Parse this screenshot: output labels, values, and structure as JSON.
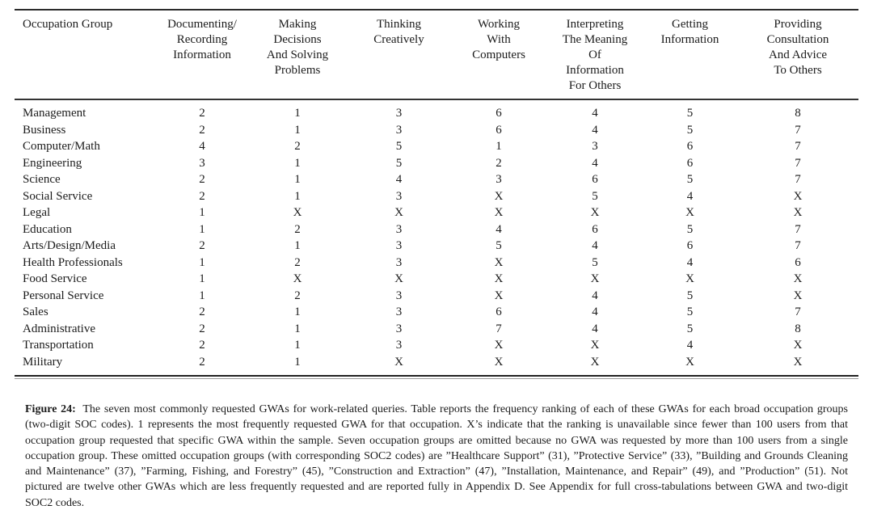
{
  "page": {
    "background": "#ffffff",
    "text_color": "#1b1b1b",
    "rule_color": "#2b2b2b"
  },
  "table": {
    "columns": [
      {
        "label": "Occupation Group",
        "align": "left"
      },
      {
        "label": "Documenting/\nRecording\nInformation"
      },
      {
        "label": "Making\nDecisions\nAnd Solving\nProblems"
      },
      {
        "label": "Thinking\nCreatively"
      },
      {
        "label": "Working\nWith\nComputers"
      },
      {
        "label": "Interpreting\nThe Meaning\nOf\nInformation\nFor Others"
      },
      {
        "label": "Getting\nInformation"
      },
      {
        "label": "Providing\nConsultation\nAnd Advice\nTo Others"
      }
    ],
    "rows": [
      {
        "occupation": "Management",
        "values": [
          "2",
          "1",
          "3",
          "6",
          "4",
          "5",
          "8"
        ]
      },
      {
        "occupation": "Business",
        "values": [
          "2",
          "1",
          "3",
          "6",
          "4",
          "5",
          "7"
        ]
      },
      {
        "occupation": "Computer/Math",
        "values": [
          "4",
          "2",
          "5",
          "1",
          "3",
          "6",
          "7"
        ]
      },
      {
        "occupation": "Engineering",
        "values": [
          "3",
          "1",
          "5",
          "2",
          "4",
          "6",
          "7"
        ]
      },
      {
        "occupation": "Science",
        "values": [
          "2",
          "1",
          "4",
          "3",
          "6",
          "5",
          "7"
        ]
      },
      {
        "occupation": "Social Service",
        "values": [
          "2",
          "1",
          "3",
          "X",
          "5",
          "4",
          "X"
        ]
      },
      {
        "occupation": "Legal",
        "values": [
          "1",
          "X",
          "X",
          "X",
          "X",
          "X",
          "X"
        ]
      },
      {
        "occupation": "Education",
        "values": [
          "1",
          "2",
          "3",
          "4",
          "6",
          "5",
          "7"
        ]
      },
      {
        "occupation": "Arts/Design/Media",
        "values": [
          "2",
          "1",
          "3",
          "5",
          "4",
          "6",
          "7"
        ]
      },
      {
        "occupation": "Health Professionals",
        "values": [
          "1",
          "2",
          "3",
          "X",
          "5",
          "4",
          "6"
        ]
      },
      {
        "occupation": "Food Service",
        "values": [
          "1",
          "X",
          "X",
          "X",
          "X",
          "X",
          "X"
        ]
      },
      {
        "occupation": "Personal Service",
        "values": [
          "1",
          "2",
          "3",
          "X",
          "4",
          "5",
          "X"
        ]
      },
      {
        "occupation": "Sales",
        "values": [
          "2",
          "1",
          "3",
          "6",
          "4",
          "5",
          "7"
        ]
      },
      {
        "occupation": "Administrative",
        "values": [
          "2",
          "1",
          "3",
          "7",
          "4",
          "5",
          "8"
        ]
      },
      {
        "occupation": "Transportation",
        "values": [
          "2",
          "1",
          "3",
          "X",
          "X",
          "4",
          "X"
        ]
      },
      {
        "occupation": "Military",
        "values": [
          "2",
          "1",
          "X",
          "X",
          "X",
          "X",
          "X"
        ]
      }
    ]
  },
  "caption": {
    "label": "Figure 24:",
    "text": "The seven most commonly requested GWAs for work-related queries. Table reports the frequency ranking of each of these GWAs for each broad occupation groups (two-digit SOC codes). 1 represents the most frequently requested GWA for that occupation. X’s indicate that the ranking is unavailable since fewer than 100 users from that occupation group requested that specific GWA within the sample. Seven occupation groups are omitted because no GWA was requested by more than 100 users from a single occupation group. These omitted occupation groups (with corresponding SOC2 codes) are ”Healthcare Support” (31), ”Protective Service” (33), ”Building and Grounds Cleaning and Maintenance” (37), ”Farming, Fishing, and Forestry” (45), ”Construction and Extraction” (47), ”Installation, Maintenance, and Repair” (49), and ”Production” (51). Not pictured are twelve other GWAs which are less frequently requested and are reported fully in Appendix D. See Appendix for full cross-tabulations between GWA and two-digit SOC2 codes."
  }
}
